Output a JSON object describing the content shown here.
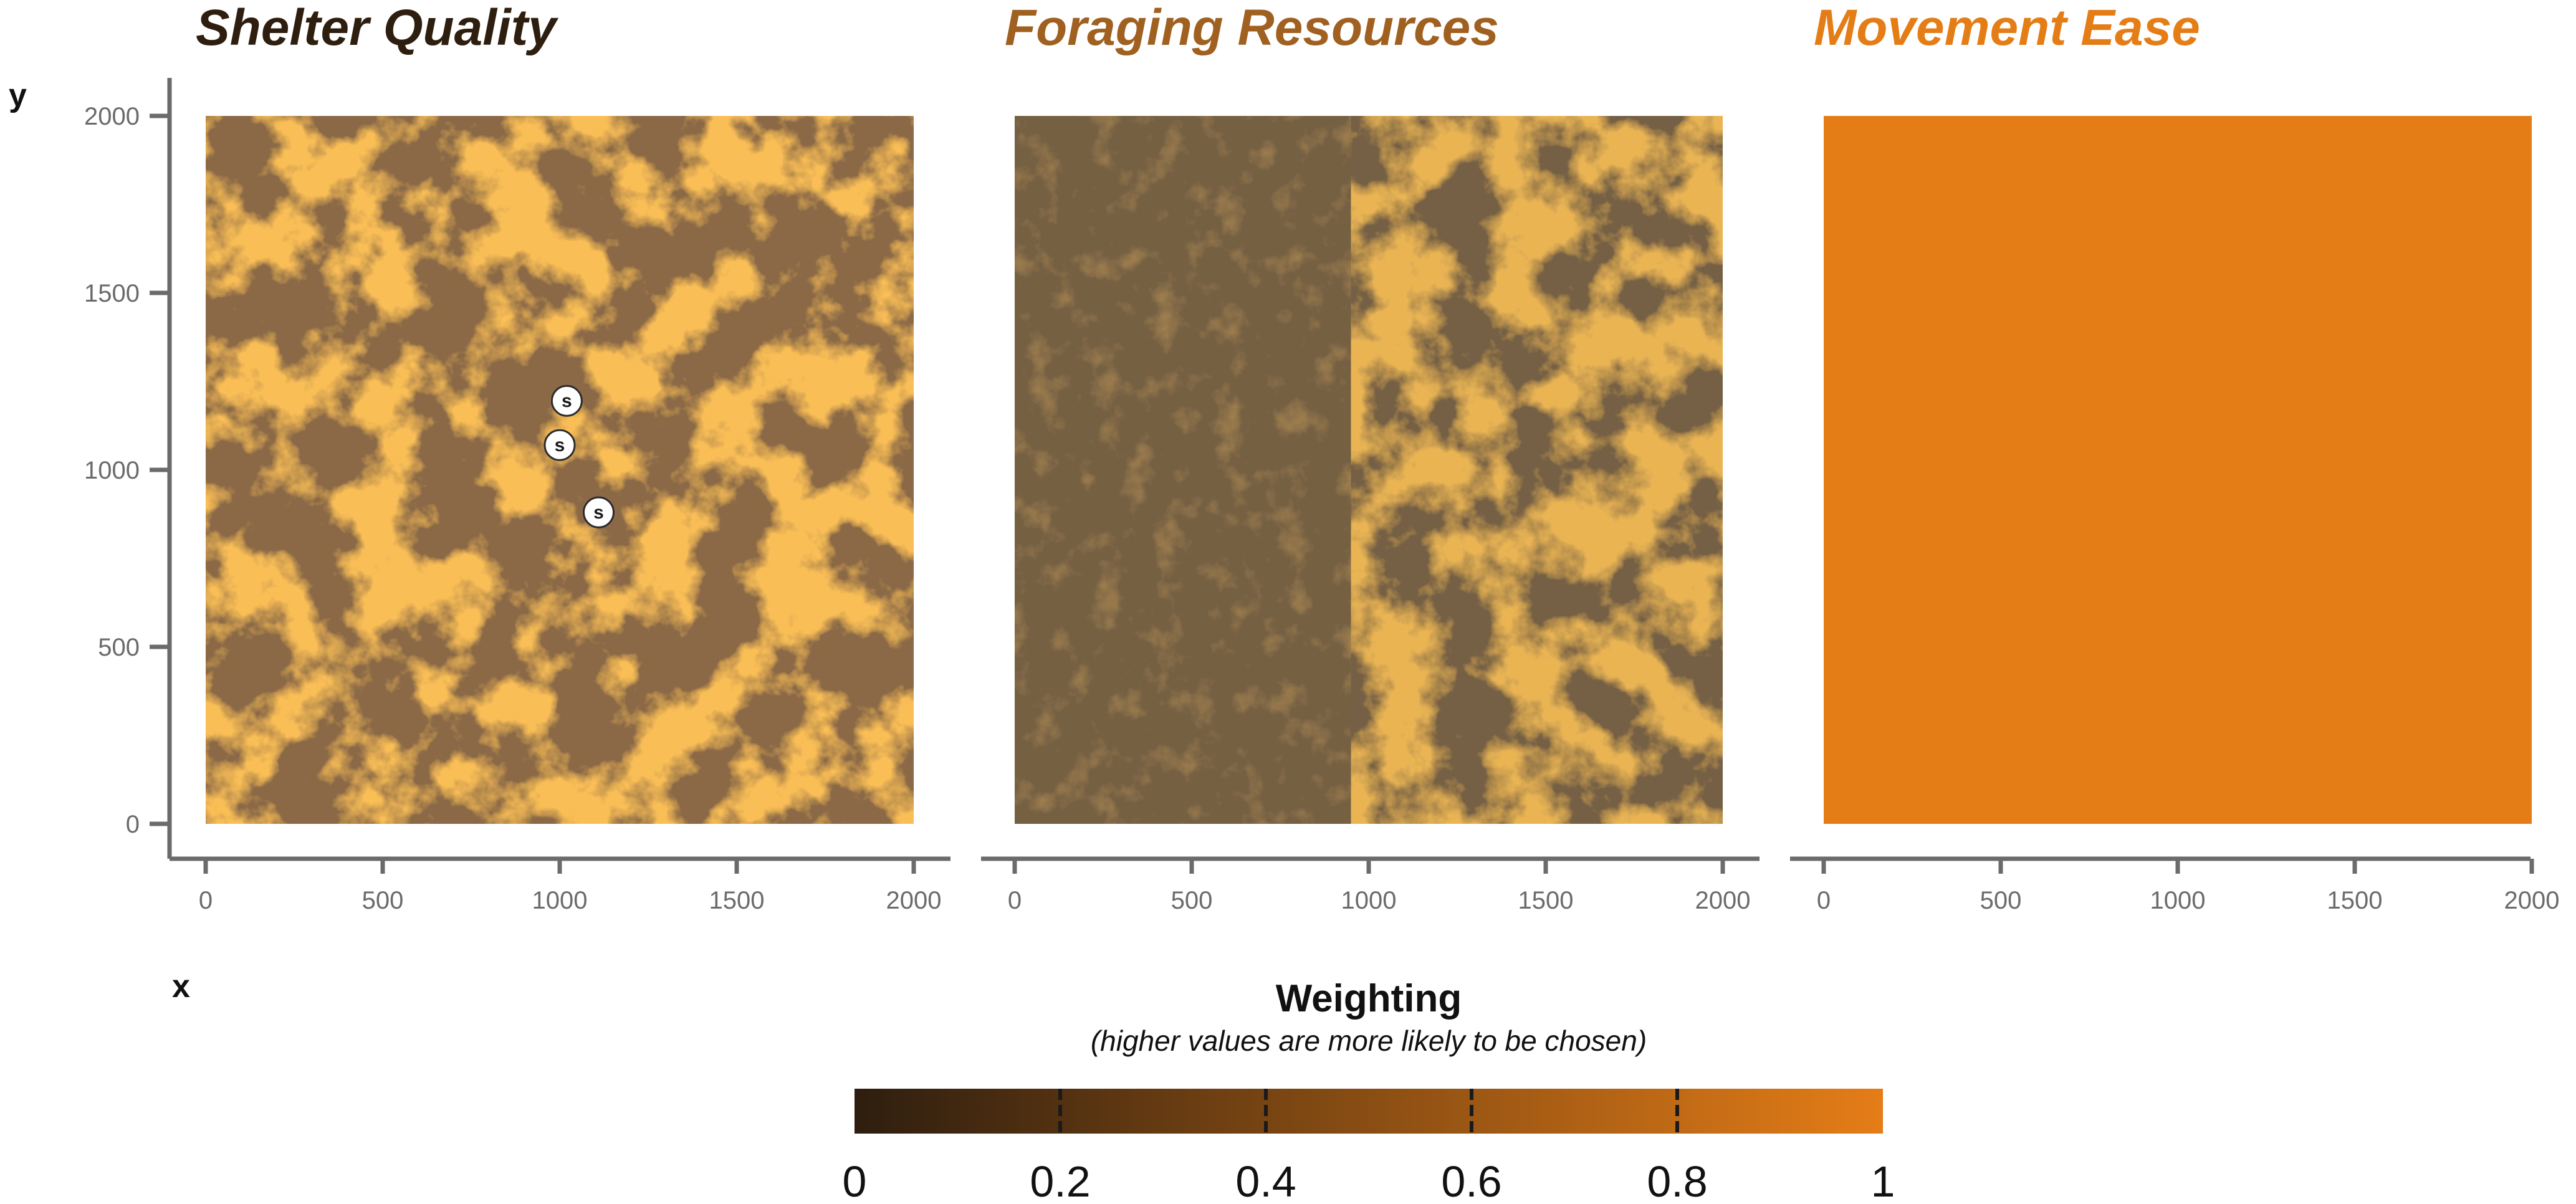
{
  "colors": {
    "low": "#2e1e0f",
    "high": "#e57d17",
    "axis": "#6b6b6b",
    "title_shelter": "#2e1e0f",
    "title_foraging": "#a0601f",
    "title_movement": "#e57d17"
  },
  "chart_data": [
    {
      "type": "heatmap",
      "title": "Shelter Quality",
      "xlabel": "x",
      "ylabel": "y",
      "xlim": [
        0,
        2000
      ],
      "ylim": [
        0,
        2000
      ],
      "x_ticks": [
        "0",
        "500",
        "1000",
        "1500",
        "2000"
      ],
      "y_ticks": [
        "0",
        "500",
        "1000",
        "1500",
        "2000"
      ],
      "value_pattern": "patchy mix of values near 0.2 and near 1 across the whole landscape",
      "markers": [
        {
          "label": "s",
          "x": 1020,
          "y": 1195
        },
        {
          "label": "s",
          "x": 1000,
          "y": 1070
        },
        {
          "label": "s",
          "x": 1110,
          "y": 880
        }
      ]
    },
    {
      "type": "heatmap",
      "title": "Foraging Resources",
      "xlim": [
        0,
        2000
      ],
      "ylim": [
        0,
        2000
      ],
      "x_ticks": [
        "0",
        "500",
        "1000",
        "1500",
        "2000"
      ],
      "value_pattern": "values near 0 for x below about 950; patchy values between 0 and 0.9 for x above 950",
      "split_x": 950
    },
    {
      "type": "heatmap",
      "title": "Movement Ease",
      "xlim": [
        0,
        2000
      ],
      "ylim": [
        0,
        2000
      ],
      "x_ticks": [
        "0",
        "500",
        "1000",
        "1500",
        "2000"
      ],
      "value_pattern": "uniform value of 1"
    }
  ],
  "legend": {
    "title": "Weighting",
    "subtitle": "(higher values are more likely to be chosen)",
    "ticks": [
      "0",
      "0.2",
      "0.4",
      "0.6",
      "0.8",
      "1"
    ],
    "tick_values": [
      0,
      0.2,
      0.4,
      0.6,
      0.8,
      1
    ],
    "range": [
      0,
      1
    ]
  }
}
